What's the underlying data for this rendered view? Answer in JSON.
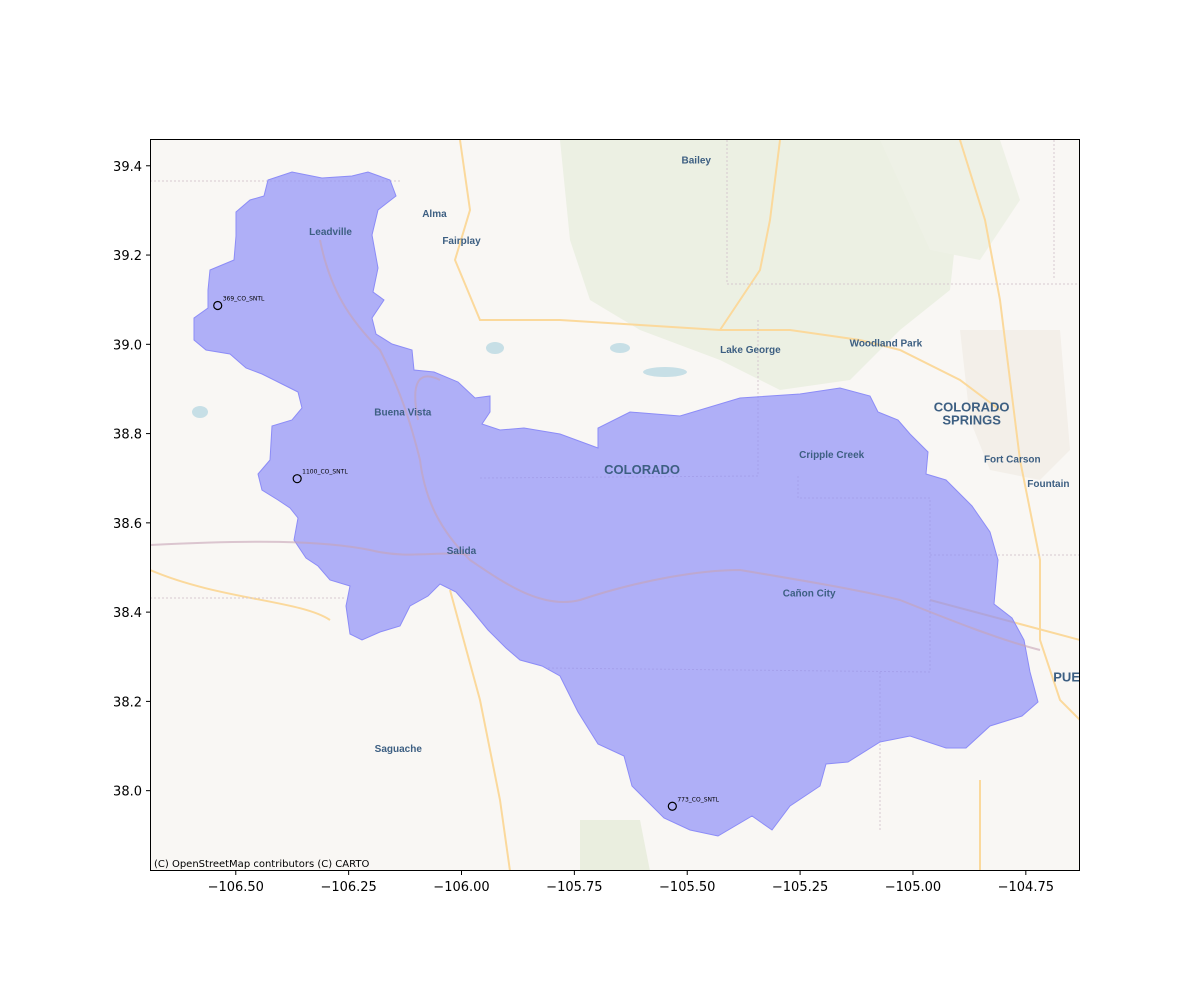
{
  "chart_data": {
    "type": "scatter",
    "title": "",
    "xlabel": "",
    "ylabel": "",
    "xlim": [
      -106.69,
      -104.63
    ],
    "ylim": [
      37.82,
      39.46
    ],
    "x_ticks": [
      -106.5,
      -106.25,
      -106.0,
      -105.75,
      -105.5,
      -105.25,
      -105.0,
      -104.75
    ],
    "x_tick_labels": [
      "−106.50",
      "−106.25",
      "−106.00",
      "−105.75",
      "−105.50",
      "−105.25",
      "−105.00",
      "−104.75"
    ],
    "y_ticks": [
      38.0,
      38.2,
      38.4,
      38.6,
      38.8,
      39.0,
      39.2,
      39.4
    ],
    "y_tick_labels": [
      "38.0",
      "38.2",
      "38.4",
      "38.6",
      "38.8",
      "39.0",
      "39.2",
      "39.4"
    ],
    "grid": false,
    "basemap": "OpenStreetMap / CARTO Voyager",
    "attribution": "(C) OpenStreetMap contributors (C) CARTO",
    "watershed": {
      "fill_color": "#8c8cf7",
      "description": "Upper Arkansas River basin polygon"
    },
    "points": [
      {
        "name": "369_CO_SNTL",
        "lon": -106.54,
        "lat": 39.087
      },
      {
        "name": "1100_CO_SNTL",
        "lon": -106.364,
        "lat": 38.699
      },
      {
        "name": "773_CO_SNTL",
        "lon": -105.533,
        "lat": 37.965
      }
    ],
    "place_labels": [
      {
        "text": "Bailey",
        "lon": -105.48,
        "lat": 39.405
      },
      {
        "text": "Leadville",
        "lon": -106.29,
        "lat": 39.245
      },
      {
        "text": "Alma",
        "lon": -106.06,
        "lat": 39.285
      },
      {
        "text": "Fairplay",
        "lon": -106.0,
        "lat": 39.225
      },
      {
        "text": "Lake George",
        "lon": -105.36,
        "lat": 38.98
      },
      {
        "text": "Woodland Park",
        "lon": -105.06,
        "lat": 38.995
      },
      {
        "text": "COLORADO",
        "lon": -104.87,
        "lat": 38.85,
        "big": true
      },
      {
        "text": "SPRINGS",
        "lon": -104.87,
        "lat": 38.82,
        "big": true
      },
      {
        "text": "Buena Vista",
        "lon": -106.13,
        "lat": 38.84
      },
      {
        "text": "COLORADO",
        "lon": -105.6,
        "lat": 38.71,
        "big": true
      },
      {
        "text": "Cripple Creek",
        "lon": -105.18,
        "lat": 38.745
      },
      {
        "text": "Fort Carson",
        "lon": -104.78,
        "lat": 38.735
      },
      {
        "text": "Fountain",
        "lon": -104.7,
        "lat": 38.68
      },
      {
        "text": "Salida",
        "lon": -106.0,
        "lat": 38.53
      },
      {
        "text": "Cañon City",
        "lon": -105.23,
        "lat": 38.435
      },
      {
        "text": "PUE",
        "lon": -104.63,
        "lat": 38.245,
        "big": true,
        "anchor": "end"
      },
      {
        "text": "Saguache",
        "lon": -106.14,
        "lat": 38.087
      }
    ]
  }
}
